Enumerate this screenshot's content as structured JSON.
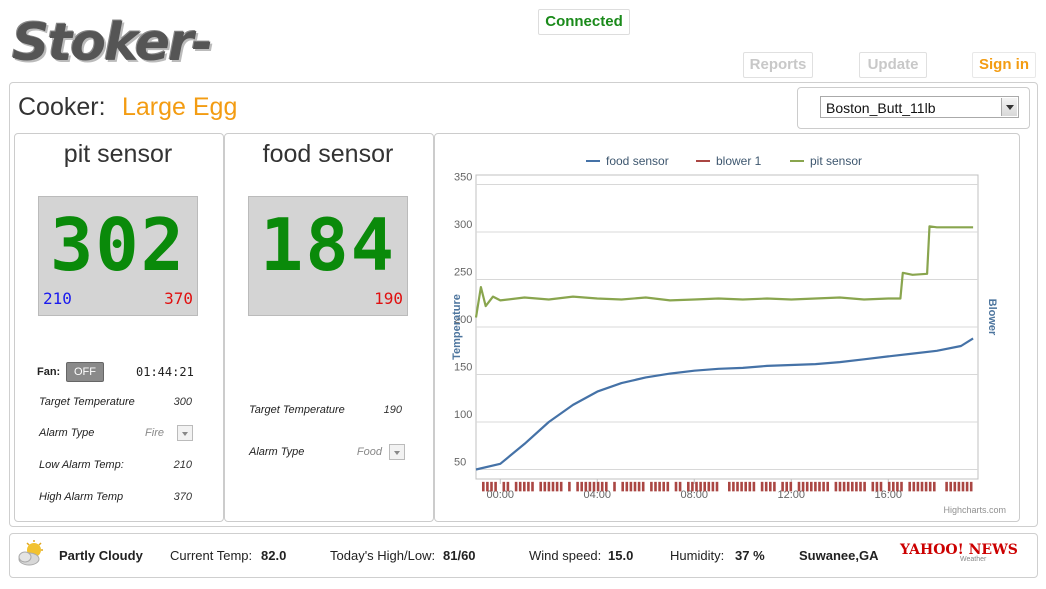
{
  "header": {
    "logo_text": "Stoker-web",
    "status": "Connected",
    "buttons": {
      "reports": "Reports",
      "update": "Update",
      "sign_in": "Sign in"
    }
  },
  "cooker": {
    "label": "Cooker:",
    "name": "Large Egg",
    "selected_cook": "Boston_Butt_11lb"
  },
  "pit": {
    "title": "pit sensor",
    "current": "302",
    "low": "210",
    "high": "370",
    "fan_label": "Fan:",
    "fan_state": "OFF",
    "timer": "01:44:21",
    "target_label": "Target Temperature",
    "target_value": "300",
    "alarm_label": "Alarm Type",
    "alarm_value": "Fire",
    "low_alarm_label": "Low Alarm Temp:",
    "low_alarm_value": "210",
    "high_alarm_label": "High Alarm Temp",
    "high_alarm_value": "370"
  },
  "food": {
    "title": "food sensor",
    "current": "184",
    "high": "190",
    "target_label": "Target Temperature",
    "target_value": "190",
    "alarm_label": "Alarm Type",
    "alarm_value": "Food"
  },
  "chart_data": {
    "type": "line",
    "title": "",
    "xlabel": "",
    "ylabel": "Temperature",
    "y2label": "Blower",
    "legend_position": "top",
    "credits": "Highcharts.com",
    "ylim": [
      40,
      360
    ],
    "yticks": [
      50,
      100,
      150,
      200,
      250,
      300,
      350
    ],
    "xlim": [
      -1,
      19.7
    ],
    "xticks": [
      "00:00",
      "04:00",
      "08:00",
      "12:00",
      "16:00"
    ],
    "series": [
      {
        "name": "food sensor",
        "color": "#4572a7",
        "x": [
          -1,
          0,
          1,
          2,
          3,
          4,
          5,
          6,
          7,
          8,
          9,
          10,
          11,
          12,
          13,
          14,
          15,
          16,
          17,
          18,
          19,
          19.5
        ],
        "values": [
          50,
          56,
          77,
          100,
          118,
          132,
          141,
          147,
          151,
          154,
          156,
          157,
          159,
          160,
          161,
          163,
          166,
          169,
          172,
          175,
          180,
          188
        ]
      },
      {
        "name": "blower 1",
        "color": "#aa4643",
        "x": [],
        "values": []
      },
      {
        "name": "pit sensor",
        "color": "#89a54e",
        "x": [
          -1,
          -0.8,
          -0.6,
          -0.3,
          0,
          1,
          2,
          3,
          4,
          5,
          6,
          7,
          8,
          9,
          10,
          11,
          12,
          13,
          14,
          15,
          16,
          16.5,
          16.6,
          17.0,
          17.6,
          17.7,
          18.0,
          19.0,
          19.5
        ],
        "values": [
          210,
          242,
          222,
          232,
          228,
          231,
          229,
          232,
          230,
          229,
          231,
          228,
          229,
          230,
          229,
          230,
          229,
          230,
          231,
          229,
          230,
          230,
          257,
          255,
          256,
          306,
          305,
          305,
          305
        ]
      }
    ],
    "blower_band": {
      "label": "blower 1",
      "y_range": [
        27,
        37
      ]
    }
  },
  "weather": {
    "condition": "Partly Cloudy",
    "current_label": "Current Temp:",
    "current_value": "82.0",
    "highlow_label": "Today's High/Low:",
    "highlow_value": "81/60",
    "wind_label": "Wind speed:",
    "wind_value": "15.0",
    "humidity_label": "Humidity:",
    "humidity_value": "37 %",
    "location": "Suwanee,GA",
    "provider": "YAHOO! NEWS",
    "provider_sub": "Weather"
  }
}
